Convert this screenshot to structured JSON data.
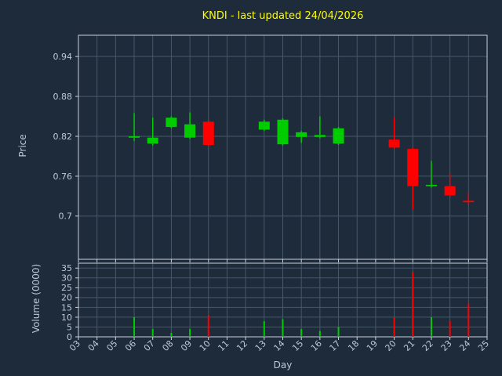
{
  "title": "KNDI - last updated 24/04/2026",
  "colors": {
    "background": "#1d2b3a",
    "grid": "#46586b",
    "spine": "#c9d1da",
    "text": "#bdc9d8",
    "title": "#ffff00",
    "up": "#00cc00",
    "down": "#ff0000"
  },
  "chart_data": {
    "type": "candlestick",
    "title": "KNDI - last updated 24/04/2026",
    "xlabel": "Day",
    "xlim": [
      3,
      25
    ],
    "x_tick_labels": [
      "03",
      "04",
      "05",
      "06",
      "07",
      "08",
      "09",
      "10",
      "11",
      "12",
      "13",
      "14",
      "15",
      "16",
      "17",
      "18",
      "19",
      "20",
      "21",
      "22",
      "23",
      "24",
      "25"
    ],
    "grid": true,
    "price_panel": {
      "ylabel": "Price",
      "ylim": [
        0.635,
        0.972
      ],
      "y_tick_labels": [
        "0.7",
        "0.76",
        "0.82",
        "0.88",
        "0.94"
      ]
    },
    "volume_panel": {
      "type": "bar",
      "ylabel": "Volume (0000)",
      "ylim": [
        0,
        37.5
      ],
      "y_tick_labels": [
        "0",
        "5",
        "10",
        "15",
        "20",
        "25",
        "30",
        "35"
      ]
    },
    "candles": [
      {
        "day": 6,
        "open": 0.818,
        "high": 0.855,
        "low": 0.813,
        "close": 0.82,
        "volume": 10
      },
      {
        "day": 7,
        "open": 0.809,
        "high": 0.848,
        "low": 0.806,
        "close": 0.818,
        "volume": 4
      },
      {
        "day": 8,
        "open": 0.834,
        "high": 0.85,
        "low": 0.832,
        "close": 0.848,
        "volume": 2
      },
      {
        "day": 9,
        "open": 0.818,
        "high": 0.856,
        "low": 0.816,
        "close": 0.838,
        "volume": 4
      },
      {
        "day": 10,
        "open": 0.842,
        "high": 0.845,
        "low": 0.805,
        "close": 0.807,
        "volume": 11
      },
      {
        "day": 13,
        "open": 0.83,
        "high": 0.845,
        "low": 0.828,
        "close": 0.842,
        "volume": 8
      },
      {
        "day": 14,
        "open": 0.808,
        "high": 0.847,
        "low": 0.806,
        "close": 0.845,
        "volume": 9
      },
      {
        "day": 15,
        "open": 0.819,
        "high": 0.828,
        "low": 0.81,
        "close": 0.826,
        "volume": 4
      },
      {
        "day": 16,
        "open": 0.819,
        "high": 0.85,
        "low": 0.817,
        "close": 0.822,
        "volume": 3
      },
      {
        "day": 17,
        "open": 0.809,
        "high": 0.834,
        "low": 0.807,
        "close": 0.832,
        "volume": 5
      },
      {
        "day": 20,
        "open": 0.815,
        "high": 0.848,
        "low": 0.801,
        "close": 0.803,
        "volume": 10
      },
      {
        "day": 21,
        "open": 0.801,
        "high": 0.803,
        "low": 0.71,
        "close": 0.745,
        "volume": 33
      },
      {
        "day": 22,
        "open": 0.745,
        "high": 0.783,
        "low": 0.743,
        "close": 0.747,
        "volume": 10
      },
      {
        "day": 23,
        "open": 0.745,
        "high": 0.764,
        "low": 0.729,
        "close": 0.731,
        "volume": 8
      },
      {
        "day": 24,
        "open": 0.723,
        "high": 0.736,
        "low": 0.717,
        "close": 0.722,
        "volume": 17
      }
    ]
  }
}
